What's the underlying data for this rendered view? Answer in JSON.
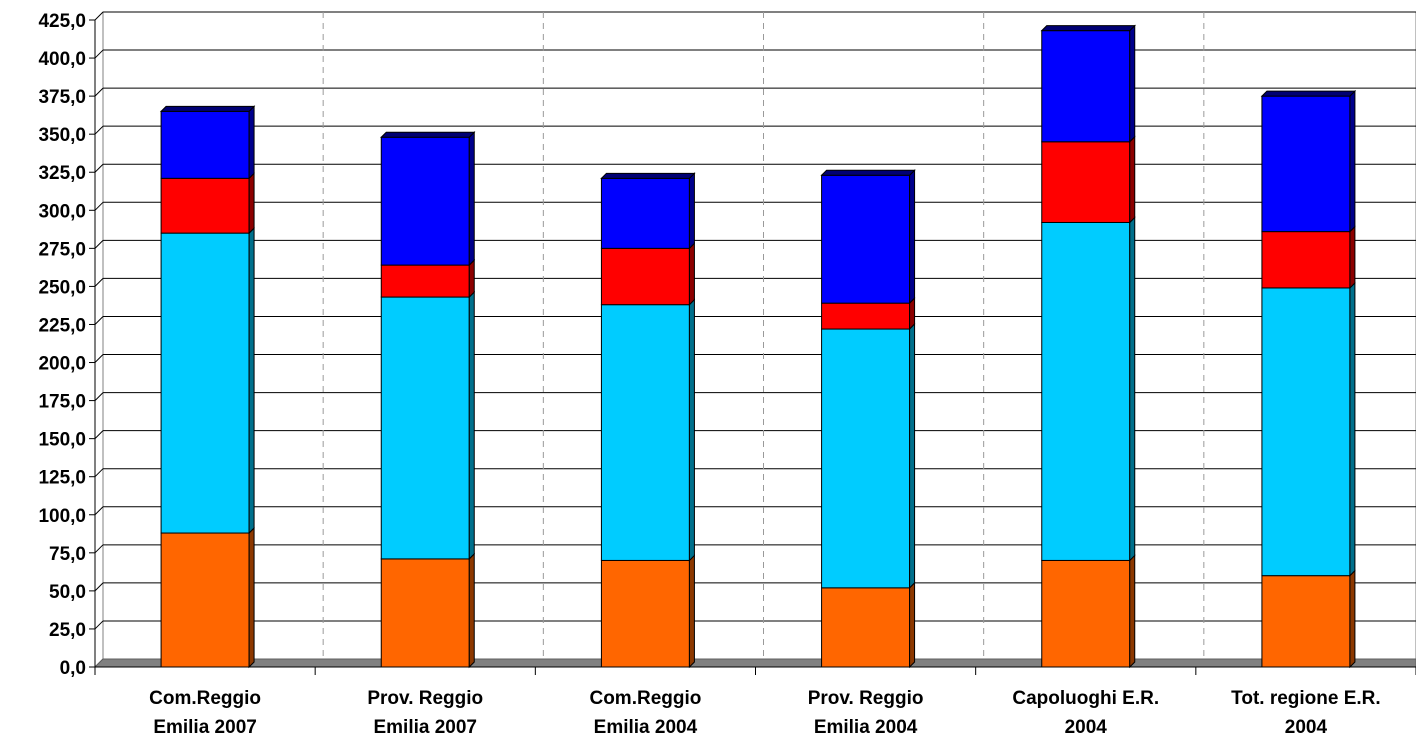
{
  "chart_data": {
    "type": "bar",
    "stacked": true,
    "three_d": true,
    "categories": [
      [
        "Com.Reggio",
        "Emilia 2007"
      ],
      [
        "Prov. Reggio",
        "Emilia 2007"
      ],
      [
        "Com.Reggio",
        "Emilia 2004"
      ],
      [
        "Prov. Reggio",
        "Emilia 2004"
      ],
      [
        "Capoluoghi E.R.",
        "2004"
      ],
      [
        "Tot. regione E.R.",
        "2004"
      ]
    ],
    "series": [
      {
        "color": "#ff6600",
        "values": [
          88,
          71,
          70,
          52,
          70,
          60
        ]
      },
      {
        "color": "#00ccff",
        "values": [
          197,
          172,
          168,
          170,
          222,
          189
        ]
      },
      {
        "color": "#ff0000",
        "values": [
          36,
          21,
          37,
          17,
          53,
          37
        ]
      },
      {
        "color": "#0000ff",
        "values": [
          44,
          84,
          46,
          84,
          73,
          89
        ]
      }
    ],
    "ylim": [
      0,
      425
    ],
    "ytick_step": 25,
    "ytick_labels": [
      "0,0",
      "25,0",
      "50,0",
      "75,0",
      "100,0",
      "125,0",
      "150,0",
      "175,0",
      "200,0",
      "225,0",
      "250,0",
      "275,0",
      "300,0",
      "325,0",
      "350,0",
      "375,0",
      "400,0",
      "425,0"
    ],
    "grid": {
      "horizontal": true,
      "vertical_dashed": true
    },
    "legend": "none",
    "title": "",
    "xlabel": "",
    "ylabel": ""
  }
}
